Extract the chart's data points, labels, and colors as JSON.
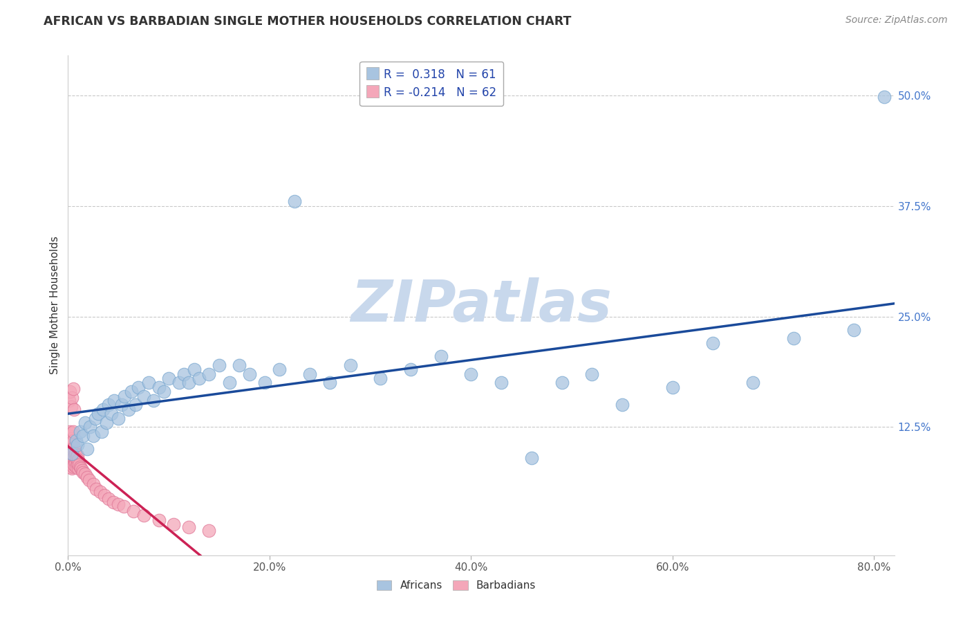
{
  "title": "AFRICAN VS BARBADIAN SINGLE MOTHER HOUSEHOLDS CORRELATION CHART",
  "source_text": "Source: ZipAtlas.com",
  "ylabel": "Single Mother Households",
  "xlim": [
    0.0,
    0.82
  ],
  "ylim": [
    -0.02,
    0.545
  ],
  "x_ticks": [
    0.0,
    0.2,
    0.4,
    0.6,
    0.8
  ],
  "x_tick_labels": [
    "0.0%",
    "20.0%",
    "40.0%",
    "60.0%",
    "80.0%"
  ],
  "y_ticks": [
    0.125,
    0.25,
    0.375,
    0.5
  ],
  "y_tick_labels": [
    "12.5%",
    "25.0%",
    "37.5%",
    "50.0%"
  ],
  "african_color": "#a8c4e0",
  "african_edge_color": "#7aa8d0",
  "barbadian_color": "#f4a7b9",
  "barbadian_edge_color": "#e07898",
  "african_line_color": "#1a4a9a",
  "barbadian_line_color": "#cc2255",
  "barbadian_dash_color": "#f0b0c0",
  "african_R": 0.318,
  "african_N": 61,
  "barbadian_R": -0.214,
  "barbadian_N": 62,
  "watermark": "ZIPatlas",
  "watermark_color": "#c8d8ec",
  "grid_color": "#bbbbbb",
  "background_color": "#ffffff",
  "ytick_color": "#4477cc",
  "xtick_color": "#555555",
  "title_color": "#333333",
  "source_color": "#888888",
  "legend_text_color": "#2244aa",
  "african_x": [
    0.004,
    0.008,
    0.009,
    0.012,
    0.015,
    0.017,
    0.019,
    0.022,
    0.025,
    0.027,
    0.03,
    0.033,
    0.035,
    0.038,
    0.04,
    0.043,
    0.046,
    0.05,
    0.053,
    0.056,
    0.06,
    0.063,
    0.067,
    0.07,
    0.075,
    0.08,
    0.085,
    0.09,
    0.095,
    0.1,
    0.11,
    0.115,
    0.12,
    0.125,
    0.13,
    0.14,
    0.15,
    0.16,
    0.17,
    0.18,
    0.195,
    0.21,
    0.225,
    0.24,
    0.26,
    0.28,
    0.31,
    0.34,
    0.37,
    0.4,
    0.43,
    0.46,
    0.49,
    0.52,
    0.55,
    0.6,
    0.64,
    0.68,
    0.72,
    0.78,
    0.81
  ],
  "african_y": [
    0.095,
    0.11,
    0.105,
    0.12,
    0.115,
    0.13,
    0.1,
    0.125,
    0.115,
    0.135,
    0.14,
    0.12,
    0.145,
    0.13,
    0.15,
    0.14,
    0.155,
    0.135,
    0.15,
    0.16,
    0.145,
    0.165,
    0.15,
    0.17,
    0.16,
    0.175,
    0.155,
    0.17,
    0.165,
    0.18,
    0.175,
    0.185,
    0.175,
    0.19,
    0.18,
    0.185,
    0.195,
    0.175,
    0.195,
    0.185,
    0.175,
    0.19,
    0.38,
    0.185,
    0.175,
    0.195,
    0.18,
    0.19,
    0.205,
    0.185,
    0.175,
    0.09,
    0.175,
    0.185,
    0.15,
    0.17,
    0.22,
    0.175,
    0.225,
    0.235,
    0.498
  ],
  "barbadian_x": [
    0.001,
    0.001,
    0.001,
    0.001,
    0.002,
    0.002,
    0.002,
    0.002,
    0.002,
    0.003,
    0.003,
    0.003,
    0.003,
    0.004,
    0.004,
    0.004,
    0.004,
    0.004,
    0.005,
    0.005,
    0.005,
    0.005,
    0.005,
    0.006,
    0.006,
    0.006,
    0.007,
    0.007,
    0.008,
    0.008,
    0.009,
    0.009,
    0.01,
    0.01,
    0.011,
    0.012,
    0.013,
    0.014,
    0.015,
    0.017,
    0.019,
    0.021,
    0.025,
    0.028,
    0.032,
    0.036,
    0.04,
    0.045,
    0.05,
    0.055,
    0.065,
    0.075,
    0.09,
    0.105,
    0.12,
    0.14,
    0.001,
    0.002,
    0.003,
    0.004,
    0.005,
    0.006
  ],
  "barbadian_y": [
    0.085,
    0.095,
    0.105,
    0.115,
    0.08,
    0.09,
    0.1,
    0.11,
    0.12,
    0.082,
    0.092,
    0.102,
    0.112,
    0.078,
    0.088,
    0.098,
    0.108,
    0.118,
    0.08,
    0.09,
    0.1,
    0.11,
    0.12,
    0.082,
    0.092,
    0.102,
    0.085,
    0.095,
    0.08,
    0.09,
    0.083,
    0.093,
    0.078,
    0.088,
    0.082,
    0.08,
    0.078,
    0.076,
    0.074,
    0.072,
    0.068,
    0.065,
    0.06,
    0.055,
    0.052,
    0.048,
    0.044,
    0.04,
    0.038,
    0.035,
    0.03,
    0.025,
    0.02,
    0.015,
    0.012,
    0.008,
    0.155,
    0.165,
    0.148,
    0.158,
    0.168,
    0.145
  ]
}
